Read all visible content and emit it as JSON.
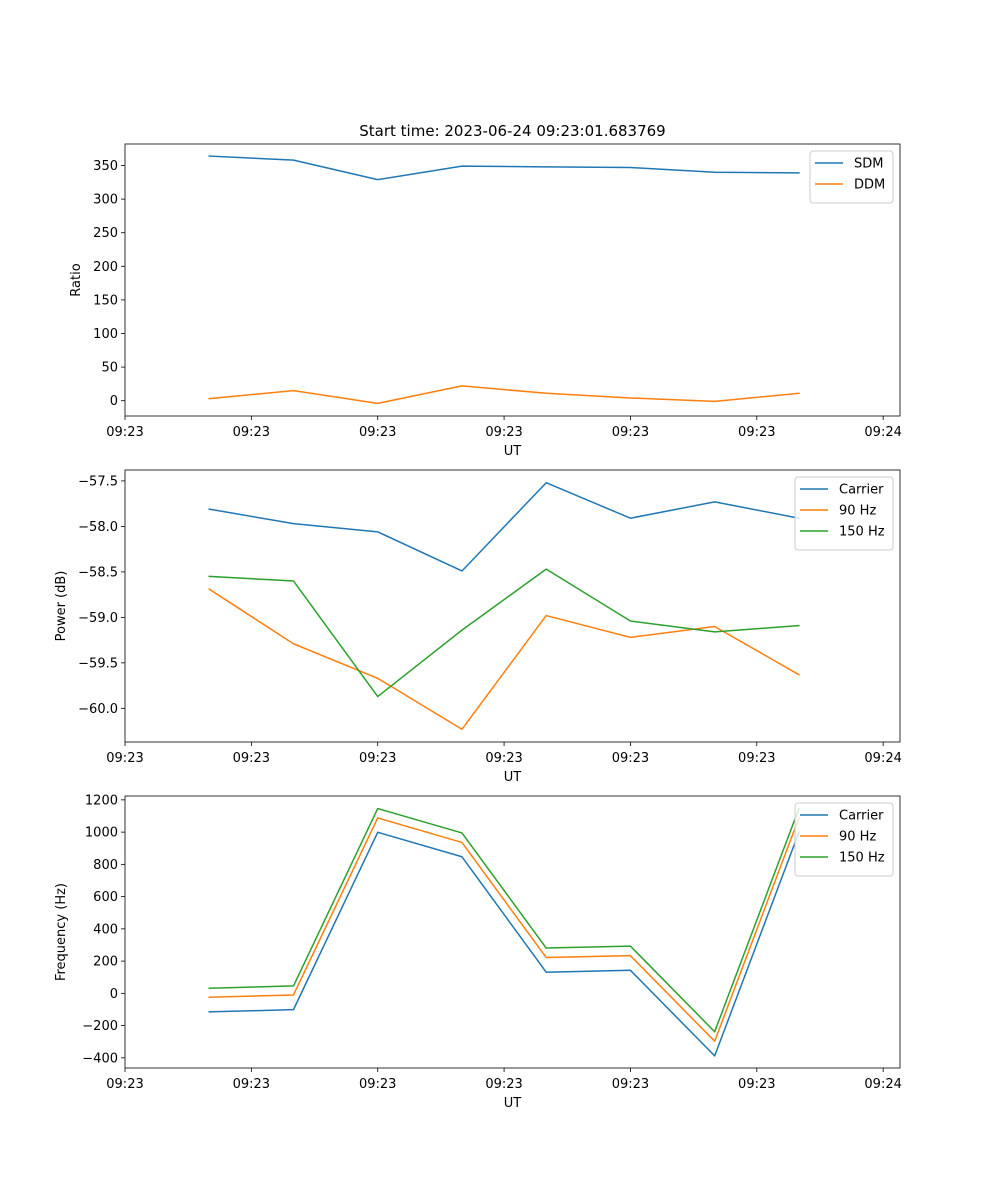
{
  "figure": {
    "title": "Start time: 2023-06-24 09:23:01.683769"
  },
  "chart_data": [
    {
      "type": "line",
      "xlabel": "UT",
      "ylabel": "Ratio",
      "x": [
        1,
        2,
        3,
        4,
        5,
        6,
        7,
        8
      ],
      "xlim": [
        0,
        9.2
      ],
      "xticks": [
        0,
        1.5,
        3,
        4.5,
        6,
        7.5,
        9
      ],
      "xtick_labels": [
        "09:23",
        "09:23",
        "09:23",
        "09:23",
        "09:23",
        "09:23",
        "09:24"
      ],
      "ylim": [
        -22.8,
        382
      ],
      "yticks": [
        0,
        50,
        100,
        150,
        200,
        250,
        300,
        350
      ],
      "ytick_labels": [
        "0",
        "50",
        "100",
        "150",
        "200",
        "250",
        "300",
        "350"
      ],
      "legend_position": "top-right",
      "grid": false,
      "series": [
        {
          "name": "SDM",
          "color": "#1f77b4",
          "values": [
            364,
            358,
            329,
            349,
            348,
            347,
            340,
            339
          ]
        },
        {
          "name": "DDM",
          "color": "#ff7f0e",
          "values": [
            3,
            15,
            -4,
            22,
            11,
            4,
            -1,
            11
          ]
        }
      ]
    },
    {
      "type": "line",
      "xlabel": "UT",
      "ylabel": "Power (dB)",
      "x": [
        1,
        2,
        3,
        4,
        5,
        6,
        7,
        8
      ],
      "xlim": [
        0,
        9.2
      ],
      "xticks": [
        0,
        1.5,
        3,
        4.5,
        6,
        7.5,
        9
      ],
      "xtick_labels": [
        "09:23",
        "09:23",
        "09:23",
        "09:23",
        "09:23",
        "09:23",
        "09:24"
      ],
      "ylim": [
        -60.37,
        -57.38
      ],
      "yticks": [
        -60.0,
        -59.5,
        -59.0,
        -58.5,
        -58.0,
        -57.5
      ],
      "ytick_labels": [
        "−60.0",
        "−59.5",
        "−59.0",
        "−58.5",
        "−58.0",
        "−57.5"
      ],
      "legend_position": "top-right",
      "grid": false,
      "series": [
        {
          "name": "Carrier",
          "color": "#1f77b4",
          "values": [
            -57.81,
            -57.97,
            -58.06,
            -58.49,
            -57.52,
            -57.91,
            -57.73,
            -57.91
          ]
        },
        {
          "name": "90 Hz",
          "color": "#ff7f0e",
          "values": [
            -58.69,
            -59.29,
            -59.67,
            -60.23,
            -58.98,
            -59.22,
            -59.1,
            -59.63
          ]
        },
        {
          "name": "150 Hz",
          "color": "#2ca02c",
          "values": [
            -58.55,
            -58.6,
            -59.87,
            -59.14,
            -58.47,
            -59.04,
            -59.16,
            -59.09
          ]
        }
      ]
    },
    {
      "type": "line",
      "xlabel": "UT",
      "ylabel": "Frequency (Hz)",
      "x": [
        1,
        2,
        3,
        4,
        5,
        6,
        7,
        8
      ],
      "xlim": [
        0,
        9.2
      ],
      "xticks": [
        0,
        1.5,
        3,
        4.5,
        6,
        7.5,
        9
      ],
      "xtick_labels": [
        "09:23",
        "09:23",
        "09:23",
        "09:23",
        "09:23",
        "09:23",
        "09:24"
      ],
      "ylim": [
        -463,
        1224
      ],
      "yticks": [
        -400,
        -200,
        0,
        200,
        400,
        600,
        800,
        1000,
        1200
      ],
      "ytick_labels": [
        "−400",
        "−200",
        "0",
        "200",
        "400",
        "600",
        "800",
        "1000",
        "1200"
      ],
      "legend_position": "top-right",
      "grid": false,
      "series": [
        {
          "name": "Carrier",
          "color": "#1f77b4",
          "values": [
            -115,
            -101,
            999,
            847,
            131,
            143,
            -388,
            999
          ]
        },
        {
          "name": "90 Hz",
          "color": "#ff7f0e",
          "values": [
            -24,
            -10,
            1088,
            936,
            222,
            234,
            -297,
            1088
          ]
        },
        {
          "name": "150 Hz",
          "color": "#2ca02c",
          "values": [
            32,
            46,
            1146,
            995,
            281,
            293,
            -238,
            1146
          ]
        }
      ]
    }
  ]
}
